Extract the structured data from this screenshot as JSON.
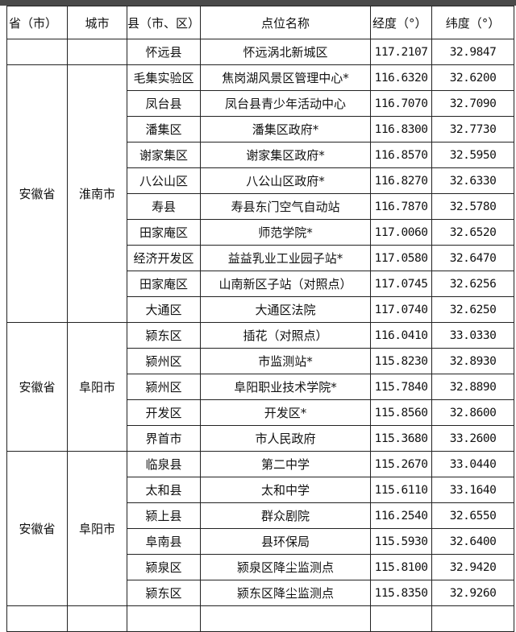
{
  "headers": [
    "省（市）",
    "城市",
    "县（市、区）",
    "点位名称",
    "经度（°）",
    "纬度（°）"
  ],
  "groups": [
    {
      "province": "",
      "city": "",
      "rows": [
        [
          "怀远县",
          "怀远涡北新城区",
          "117.2107",
          "32.9847"
        ]
      ]
    },
    {
      "province": "安徽省",
      "city": "淮南市",
      "rows": [
        [
          "毛集实验区",
          "焦岗湖风景区管理中心*",
          "116.6320",
          "32.6200"
        ],
        [
          "凤台县",
          "凤台县青少年活动中心",
          "116.7070",
          "32.7090"
        ],
        [
          "潘集区",
          "潘集区政府*",
          "116.8300",
          "32.7730"
        ],
        [
          "谢家集区",
          "谢家集区政府*",
          "116.8570",
          "32.5950"
        ],
        [
          "八公山区",
          "八公山区政府*",
          "116.8270",
          "32.6330"
        ],
        [
          "寿县",
          "寿县东门空气自动站",
          "116.7870",
          "32.5780"
        ],
        [
          "田家庵区",
          "师范学院*",
          "117.0060",
          "32.6520"
        ],
        [
          "经济开发区",
          "益益乳业工业园子站*",
          "117.0580",
          "32.6470"
        ],
        [
          "田家庵区",
          "山南新区子站（对照点）",
          "117.0745",
          "32.6256"
        ],
        [
          "大通区",
          "大通区法院",
          "117.0740",
          "32.6250"
        ]
      ]
    },
    {
      "province": "安徽省",
      "city": "阜阳市",
      "rows": [
        [
          "颍东区",
          "插花（对照点）",
          "116.0410",
          "33.0330"
        ],
        [
          "颍州区",
          "市监测站*",
          "115.8230",
          "32.8930"
        ],
        [
          "颍州区",
          "阜阳职业技术学院*",
          "115.7840",
          "32.8890"
        ],
        [
          "开发区",
          "开发区*",
          "115.8560",
          "32.8600"
        ],
        [
          "界首市",
          "市人民政府",
          "115.3680",
          "33.2600"
        ]
      ]
    },
    {
      "province": "安徽省",
      "city": "阜阳市",
      "rows": [
        [
          "临泉县",
          "第二中学",
          "115.2670",
          "33.0440"
        ],
        [
          "太和县",
          "太和中学",
          "115.6110",
          "33.1640"
        ],
        [
          "颍上县",
          "群众剧院",
          "116.2540",
          "32.6550"
        ],
        [
          "阜南县",
          "县环保局",
          "115.5930",
          "32.6400"
        ],
        [
          "颍泉区",
          "颍泉区降尘监测点",
          "115.8100",
          "32.9420"
        ],
        [
          "颍东区",
          "颍东区降尘监测点",
          "115.8350",
          "32.9260"
        ]
      ]
    }
  ]
}
